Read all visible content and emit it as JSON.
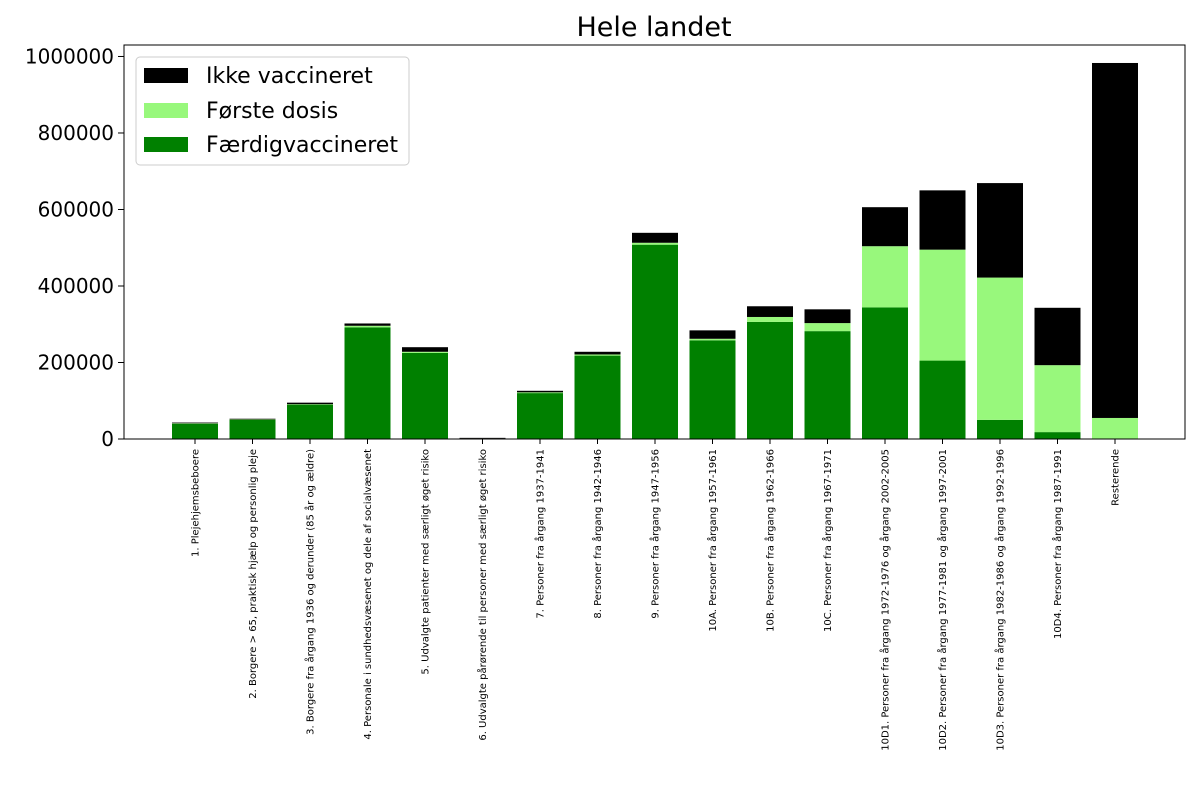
{
  "chart_data": {
    "type": "bar",
    "stacked": true,
    "title": "Hele landet",
    "xlabel": "",
    "ylabel": "",
    "ylim": [
      0,
      1030000
    ],
    "yticks": [
      0,
      200000,
      400000,
      600000,
      800000,
      1000000
    ],
    "ytick_labels": [
      "0",
      "200000",
      "400000",
      "600000",
      "800000",
      "1000000"
    ],
    "legend_position": "upper-left",
    "grid": false,
    "categories": [
      "1. Plejehjemsbeboere",
      "2. Borgere > 65, praktisk hjælp og personlig pleje",
      "3. Borgere fra årgang 1936 og derunder (85 år og ældre)",
      "4. Personale i sundhedsvæsenet og dele af socialvæsenet",
      "5. Udvalgte patienter med særligt øget risiko",
      "6. Udvalgte pårørende til personer med særligt øget risiko",
      "7. Personer fra årgang 1937-1941",
      "8. Personer fra årgang 1942-1946",
      "9. Personer fra årgang 1947-1956",
      "10A. Personer fra årgang 1957-1961",
      "10B. Personer fra årgang 1962-1966",
      "10C. Personer fra årgang 1967-1971",
      "10D1. Personer fra årgang 1972-1976 og årgang 2002-2005",
      "10D2. Personer fra årgang 1977-1981 og årgang 1997-2001",
      "10D3. Personer fra årgang 1982-1986 og årgang 1992-1996",
      "10D4. Personer fra årgang 1987-1991",
      "Resterende"
    ],
    "series": [
      {
        "name": "Færdigvaccineret",
        "color": "#008000",
        "values": [
          40000,
          50000,
          90000,
          292000,
          225000,
          1000,
          120000,
          218000,
          508000,
          258000,
          306000,
          282000,
          344000,
          205000,
          50000,
          18000,
          0
        ]
      },
      {
        "name": "Første dosis",
        "color": "#98f87c",
        "values": [
          1000,
          1000,
          1000,
          4000,
          3000,
          500,
          2000,
          3000,
          5000,
          4000,
          13000,
          21000,
          160000,
          290000,
          372000,
          175000,
          55000
        ]
      },
      {
        "name": "Ikke vaccineret",
        "color": "#000000",
        "values": [
          2000,
          2000,
          4000,
          6000,
          12000,
          1500,
          4000,
          7000,
          26000,
          22000,
          28000,
          36000,
          102000,
          155000,
          247000,
          150000,
          928000
        ]
      }
    ],
    "legend_order": [
      "Ikke vaccineret",
      "Første dosis",
      "Færdigvaccineret"
    ]
  }
}
